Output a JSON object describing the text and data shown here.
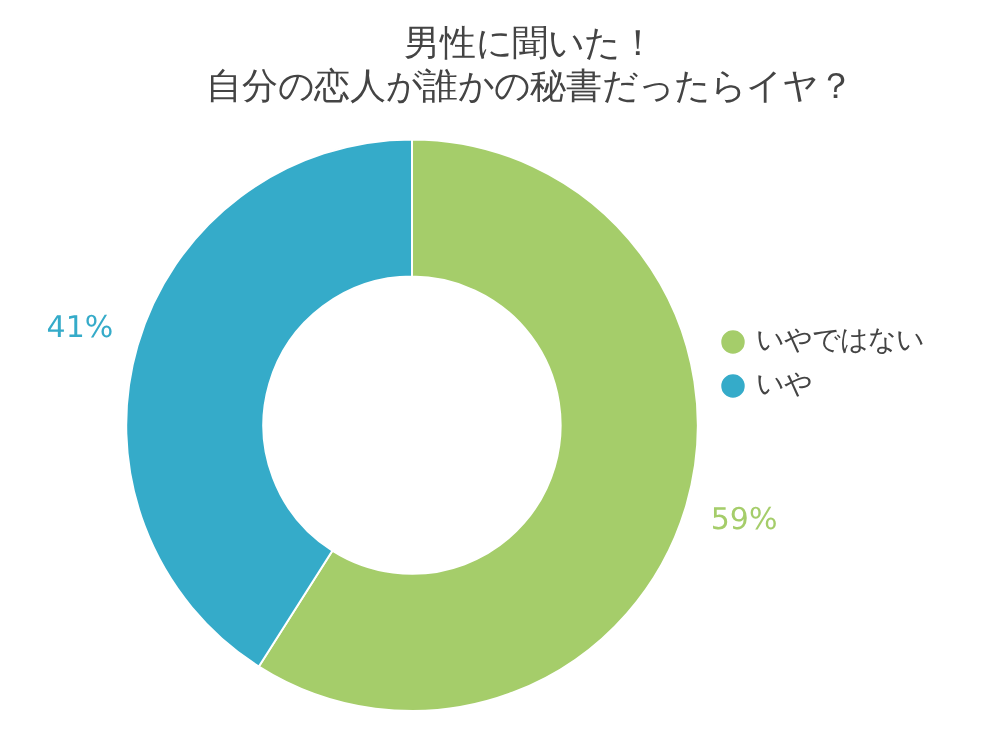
{
  "chart_data": {
    "type": "donut",
    "title": "男性に聞いた！",
    "subtitle": "自分の恋人が誰かの秘書だったらイヤ？",
    "categories": [
      "いやではない",
      "いや"
    ],
    "values": [
      59,
      41
    ],
    "colors": [
      "#a5cd6a",
      "#35abc9"
    ],
    "value_labels": [
      "59%",
      "41%"
    ],
    "legend": "right"
  }
}
